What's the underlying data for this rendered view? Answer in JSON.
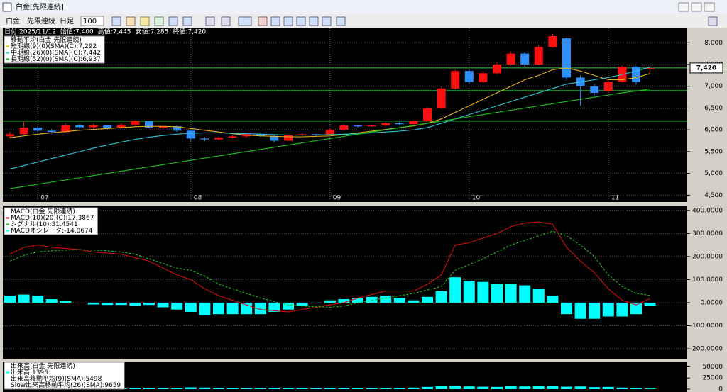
{
  "window": {
    "title": "白金[先限連続]"
  },
  "toolbar": {
    "symbol": "白金",
    "contract": "先限連続",
    "period": "日足",
    "count": 100
  },
  "info_bar": [
    "日付:2025/11/12",
    "始値:7,400",
    "高値:7,445",
    "安値:7,285",
    "終値:7,420"
  ],
  "chart_data": [
    {
      "type": "candlestick",
      "legend_title": "移動平均(白金 先限連続)",
      "categories": [
        null,
        null,
        "07",
        null,
        null,
        null,
        null,
        null,
        null,
        null,
        null,
        null,
        null,
        "08",
        null,
        null,
        null,
        null,
        null,
        null,
        null,
        null,
        null,
        "09",
        null,
        null,
        null,
        null,
        null,
        null,
        null,
        null,
        null,
        "10",
        null,
        null,
        null,
        null,
        null,
        null,
        null,
        null,
        null,
        "11",
        null,
        null,
        null
      ],
      "open": [
        5850,
        5900,
        6050,
        5980,
        5950,
        6100,
        6060,
        6100,
        6050,
        6120,
        6200,
        6050,
        6080,
        5980,
        5800,
        5780,
        5820,
        5850,
        5900,
        5860,
        5750,
        5880,
        5900,
        5880,
        6000,
        6100,
        6080,
        6100,
        6150,
        6130,
        6200,
        6500,
        6950,
        7350,
        7100,
        7300,
        7500,
        7750,
        7500,
        7900,
        8100,
        7200,
        7000,
        6900,
        7100,
        7450,
        7400
      ],
      "high": [
        5960,
        6200,
        6080,
        6020,
        6150,
        6130,
        6140,
        6120,
        6150,
        6230,
        6210,
        6110,
        6100,
        6000,
        5830,
        5850,
        5880,
        5920,
        5920,
        5880,
        5900,
        5920,
        5910,
        6020,
        6130,
        6120,
        6120,
        6180,
        6180,
        6230,
        6520,
        7000,
        7380,
        7380,
        7350,
        7550,
        7800,
        7780,
        7950,
        8200,
        8120,
        7250,
        7050,
        7150,
        7480,
        7460,
        7445
      ],
      "low": [
        5800,
        5880,
        5950,
        5900,
        5930,
        6020,
        6030,
        6000,
        6030,
        6100,
        6030,
        6020,
        5950,
        5750,
        5740,
        5760,
        5800,
        5820,
        5840,
        5720,
        5740,
        5860,
        5860,
        5870,
        5980,
        6060,
        6060,
        6080,
        6110,
        6120,
        6180,
        6480,
        6930,
        7050,
        7080,
        7280,
        7480,
        7450,
        7480,
        7880,
        7150,
        6550,
        6800,
        6850,
        7080,
        7050,
        7285
      ],
      "close": [
        5900,
        6050,
        5980,
        5950,
        6100,
        6060,
        6100,
        6050,
        6120,
        6200,
        6050,
        6080,
        5980,
        5800,
        5780,
        5820,
        5850,
        5900,
        5860,
        5750,
        5880,
        5900,
        5880,
        6000,
        6100,
        6080,
        6100,
        6150,
        6130,
        6200,
        6500,
        6950,
        7350,
        7100,
        7300,
        7500,
        7750,
        7500,
        7900,
        8150,
        7200,
        7000,
        6850,
        7100,
        7450,
        7100,
        7420
      ],
      "up_color": "#ff1010",
      "down_color": "#2f8fff",
      "series": [
        {
          "name": "短期線(9)(0)(SMA)(C):7,292",
          "color": "#e6b422",
          "values": [
            5820,
            5860,
            5900,
            5930,
            5960,
            5990,
            6010,
            6030,
            6050,
            6070,
            6080,
            6080,
            6070,
            6030,
            5990,
            5950,
            5910,
            5880,
            5860,
            5850,
            5840,
            5840,
            5850,
            5860,
            5890,
            5930,
            5970,
            6010,
            6050,
            6090,
            6150,
            6250,
            6400,
            6550,
            6700,
            6850,
            7000,
            7150,
            7250,
            7380,
            7420,
            7350,
            7250,
            7150,
            7150,
            7200,
            7292
          ]
        },
        {
          "name": "中期線(26)(0)(SMA)(C):7,442",
          "color": "#2ec4d6",
          "values": [
            5100,
            5180,
            5260,
            5340,
            5420,
            5500,
            5580,
            5650,
            5720,
            5780,
            5830,
            5870,
            5900,
            5920,
            5930,
            5930,
            5920,
            5910,
            5900,
            5890,
            5880,
            5880,
            5880,
            5890,
            5900,
            5910,
            5930,
            5950,
            5970,
            6000,
            6050,
            6150,
            6250,
            6350,
            6450,
            6550,
            6650,
            6750,
            6850,
            6950,
            7050,
            7100,
            7150,
            7200,
            7270,
            7350,
            7442
          ]
        },
        {
          "name": "長期線(52)(0)(SMA)(C):6,937",
          "color": "#1fc21f",
          "values": [
            4650,
            4700,
            4750,
            4800,
            4850,
            4900,
            4950,
            5000,
            5050,
            5100,
            5150,
            5200,
            5250,
            5300,
            5350,
            5400,
            5450,
            5500,
            5550,
            5600,
            5650,
            5700,
            5750,
            5800,
            5850,
            5900,
            5950,
            6000,
            6050,
            6100,
            6150,
            6200,
            6250,
            6300,
            6350,
            6400,
            6450,
            6500,
            6550,
            6600,
            6650,
            6700,
            6750,
            6800,
            6850,
            6890,
            6937
          ]
        }
      ],
      "hlines": [
        7420,
        6900,
        6200
      ],
      "hline_color": "#2ecc40",
      "current_price": {
        "value": 7420,
        "label": "7,420"
      },
      "ylim": [
        4375,
        8330
      ],
      "yticks": [
        {
          "value": 4500,
          "label": "4,500"
        },
        {
          "value": 5000,
          "label": "5,000"
        },
        {
          "value": 5500,
          "label": "5,500"
        },
        {
          "value": 6000,
          "label": "6,000"
        },
        {
          "value": 6500,
          "label": "6,500"
        },
        {
          "value": 7000,
          "label": "7,000"
        },
        {
          "value": 7500,
          "label": "7,500"
        },
        {
          "value": 8000,
          "label": "8,000"
        }
      ],
      "grid": true
    },
    {
      "type": "macd",
      "legend_title": "MACD(白金 先限連続)",
      "series": [
        {
          "name": "MACD(10)(20)(C):17.3867",
          "color": "#d01010",
          "values": [
            210,
            240,
            250,
            240,
            235,
            230,
            220,
            215,
            210,
            195,
            180,
            150,
            120,
            100,
            60,
            30,
            10,
            -10,
            -30,
            -35,
            -40,
            -30,
            -20,
            -10,
            0,
            20,
            35,
            50,
            50,
            50,
            80,
            120,
            250,
            260,
            280,
            300,
            330,
            345,
            350,
            340,
            240,
            180,
            130,
            60,
            10,
            -10,
            17.3867
          ]
        },
        {
          "name": "シグナル(10):31.4541",
          "color": "#22bb22",
          "dashed": true,
          "values": [
            180,
            205,
            220,
            225,
            228,
            230,
            228,
            225,
            220,
            210,
            190,
            170,
            150,
            140,
            115,
            80,
            60,
            40,
            20,
            5,
            -10,
            -15,
            -18,
            -20,
            -15,
            0,
            10,
            20,
            30,
            40,
            55,
            70,
            140,
            165,
            190,
            220,
            250,
            270,
            290,
            310,
            290,
            250,
            200,
            120,
            70,
            40,
            31.4541
          ]
        },
        {
          "name": "MACDオシレータ:-14.0674",
          "color": "#00ffff",
          "bars": true,
          "values": [
            30,
            35,
            30,
            15,
            7,
            0,
            -8,
            -10,
            -10,
            -15,
            -10,
            -20,
            -30,
            -40,
            -55,
            -50,
            -50,
            -50,
            -50,
            -40,
            -30,
            -15,
            -2,
            10,
            15,
            20,
            25,
            30,
            20,
            10,
            25,
            50,
            110,
            95,
            90,
            80,
            80,
            75,
            60,
            30,
            -50,
            -70,
            -70,
            -60,
            -60,
            -50,
            -14.0674
          ]
        }
      ],
      "ylim": [
        -240,
        418
      ],
      "yticks": [
        {
          "value": -200,
          "label": "-200.0000"
        },
        {
          "value": -100,
          "label": "-100.0000"
        },
        {
          "value": 0,
          "label": "0.0000"
        },
        {
          "value": 100,
          "label": "100.0000"
        },
        {
          "value": 200,
          "label": "200.0000"
        },
        {
          "value": 300,
          "label": "300.0000"
        },
        {
          "value": 400,
          "label": "400.0000"
        }
      ],
      "grid": true
    },
    {
      "type": "bar",
      "legend_title": "出来高(白金 先限連続)",
      "series": [
        {
          "name": "出来高:1396",
          "color": "#00ffff",
          "values": [
            3000,
            2500,
            2000,
            2600,
            3000,
            2200,
            2800,
            3500,
            2400,
            3000,
            3200,
            2600,
            2500,
            4000,
            3500,
            2800,
            3000,
            2600,
            2400,
            3000,
            2200,
            2500,
            2600,
            3000,
            2800,
            2400,
            2600,
            2200,
            3000,
            3500,
            5000,
            6500,
            8000,
            6000,
            5500,
            5000,
            7000,
            6000,
            6500,
            7500,
            5500,
            6000,
            4500,
            5000,
            3500,
            3000,
            1396
          ]
        }
      ],
      "legend_extra": [
        "出来高移動平均(9)(SMA):5498",
        "Slow出来高移動平均(26)(SMA):9659"
      ],
      "ylim": [
        0,
        60000
      ],
      "yticks": [
        0,
        25000,
        50000
      ],
      "grid": false
    }
  ]
}
